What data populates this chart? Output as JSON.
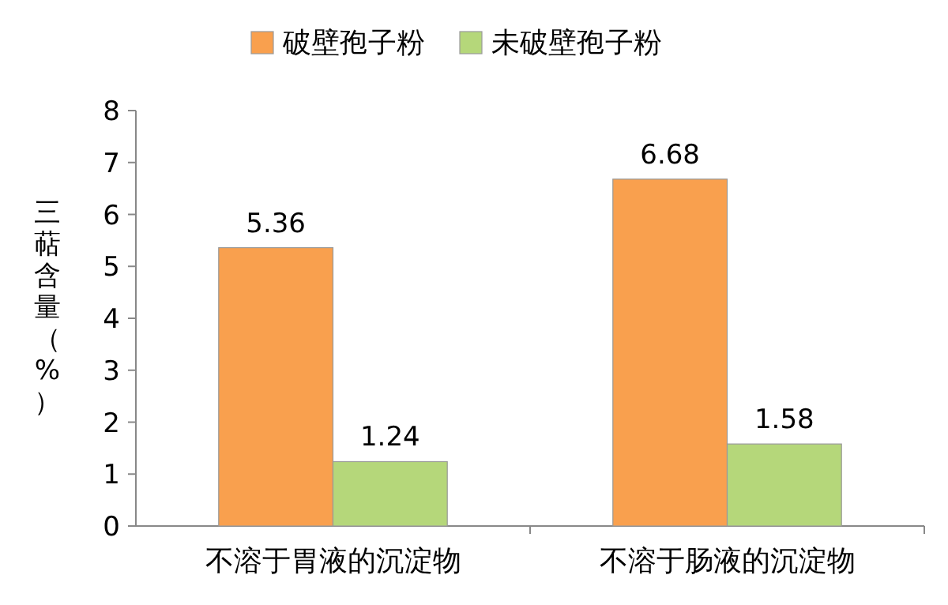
{
  "chart_data": {
    "type": "bar",
    "categories": [
      "不溶于胃液的沉淀物",
      "不溶于肠液的沉淀物"
    ],
    "series": [
      {
        "name": "破壁孢子粉",
        "color": "#f9a04e",
        "values": [
          5.36,
          6.68
        ]
      },
      {
        "name": "未破壁孢子粉",
        "color": "#b5d77a",
        "values": [
          1.24,
          1.58
        ]
      }
    ],
    "ylabel": "三萜含量（%）",
    "ylim": [
      0,
      8
    ],
    "yticks": [
      0,
      1,
      2,
      3,
      4,
      5,
      6,
      7,
      8
    ],
    "data_labels": true,
    "legend": "top"
  }
}
